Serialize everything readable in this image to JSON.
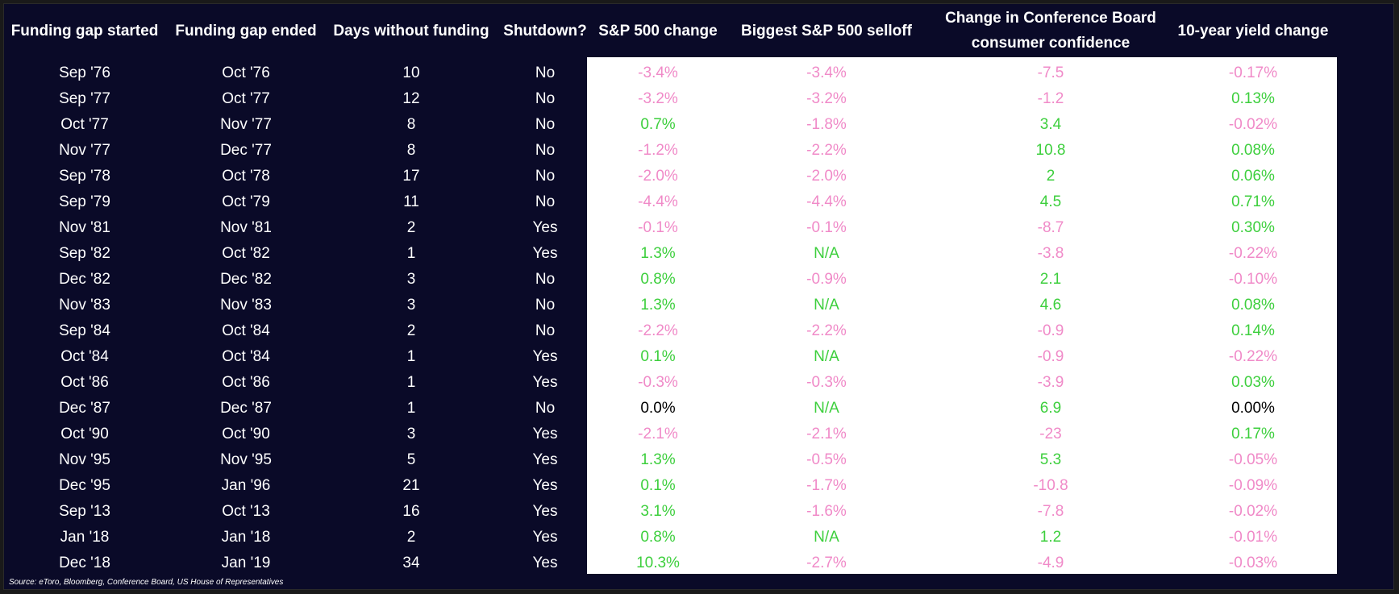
{
  "chart_data": {
    "type": "table",
    "columns": [
      "Funding gap started",
      "Funding gap ended",
      "Days without funding",
      "Shutdown?",
      "S&P 500 change",
      "Biggest S&P 500 selloff",
      "Change in Conference Board consumer confidence",
      "10-year yield change"
    ],
    "rows": [
      [
        "Sep '76",
        "Oct '76",
        "10",
        "No",
        "-3.4%",
        "-3.4%",
        "-7.5",
        "-0.17%"
      ],
      [
        "Sep '77",
        "Oct '77",
        "12",
        "No",
        "-3.2%",
        "-3.2%",
        "-1.2",
        "0.13%"
      ],
      [
        "Oct '77",
        "Nov '77",
        "8",
        "No",
        "0.7%",
        "-1.8%",
        "3.4",
        "-0.02%"
      ],
      [
        "Nov '77",
        "Dec '77",
        "8",
        "No",
        "-1.2%",
        "-2.2%",
        "10.8",
        "0.08%"
      ],
      [
        "Sep '78",
        "Oct '78",
        "17",
        "No",
        "-2.0%",
        "-2.0%",
        "2",
        "0.06%"
      ],
      [
        "Sep '79",
        "Oct '79",
        "11",
        "No",
        "-4.4%",
        "-4.4%",
        "4.5",
        "0.71%"
      ],
      [
        "Nov '81",
        "Nov '81",
        "2",
        "Yes",
        "-0.1%",
        "-0.1%",
        "-8.7",
        "0.30%"
      ],
      [
        "Sep '82",
        "Oct '82",
        "1",
        "Yes",
        "1.3%",
        "N/A",
        "-3.8",
        "-0.22%"
      ],
      [
        "Dec '82",
        "Dec '82",
        "3",
        "No",
        "0.8%",
        "-0.9%",
        "2.1",
        "-0.10%"
      ],
      [
        "Nov '83",
        "Nov '83",
        "3",
        "No",
        "1.3%",
        "N/A",
        "4.6",
        "0.08%"
      ],
      [
        "Sep '84",
        "Oct '84",
        "2",
        "No",
        "-2.2%",
        "-2.2%",
        "-0.9",
        "0.14%"
      ],
      [
        "Oct '84",
        "Oct '84",
        "1",
        "Yes",
        "0.1%",
        "N/A",
        "-0.9",
        "-0.22%"
      ],
      [
        "Oct '86",
        "Oct '86",
        "1",
        "Yes",
        "-0.3%",
        "-0.3%",
        "-3.9",
        "0.03%"
      ],
      [
        "Dec '87",
        "Dec '87",
        "1",
        "No",
        "0.0%",
        "N/A",
        "6.9",
        "0.00%"
      ],
      [
        "Oct '90",
        "Oct '90",
        "3",
        "Yes",
        "-2.1%",
        "-2.1%",
        "-23",
        "0.17%"
      ],
      [
        "Nov '95",
        "Nov '95",
        "5",
        "Yes",
        "1.3%",
        "-0.5%",
        "5.3",
        "-0.05%"
      ],
      [
        "Dec '95",
        "Jan '96",
        "21",
        "Yes",
        "0.1%",
        "-1.7%",
        "-10.8",
        "-0.09%"
      ],
      [
        "Sep '13",
        "Oct '13",
        "16",
        "Yes",
        "3.1%",
        "-1.6%",
        "-7.8",
        "-0.02%"
      ],
      [
        "Jan '18",
        "Jan '18",
        "2",
        "Yes",
        "0.8%",
        "N/A",
        "1.2",
        "-0.01%"
      ],
      [
        "Dec '18",
        "Jan '19",
        "34",
        "Yes",
        "10.3%",
        "-2.7%",
        "-4.9",
        "-0.03%"
      ]
    ],
    "source": "Source: eToro, Bloomberg, Conference Board, US House of Representatives"
  },
  "colors": {
    "background": "#0a0a28",
    "header_text": "#ffffff",
    "panel": "#ffffff",
    "positive": "#3dcf3d",
    "negative": "#f08ac8",
    "zero": "#000000"
  }
}
